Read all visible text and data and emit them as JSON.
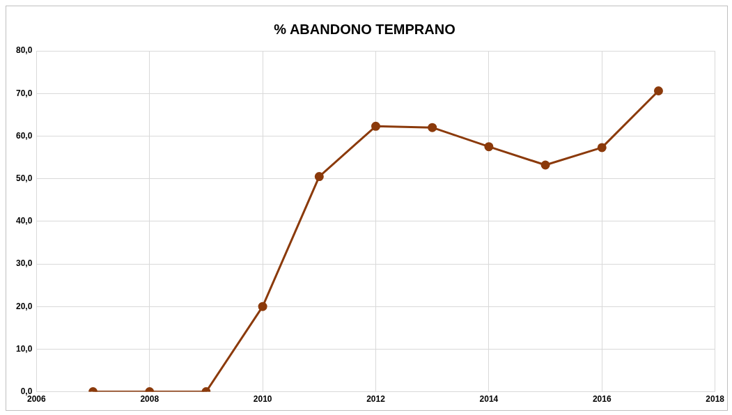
{
  "chart_data": {
    "type": "line",
    "title": "% ABANDONO TEMPRANO",
    "x": [
      2007,
      2008,
      2009,
      2010,
      2011,
      2012,
      2013,
      2014,
      2015,
      2016,
      2017
    ],
    "series": [
      {
        "color": "#8b3a0b",
        "values": [
          0,
          0,
          0,
          20.0,
          50.5,
          62.3,
          62.0,
          57.5,
          53.2,
          57.3,
          70.6
        ]
      }
    ],
    "xlim": [
      2006,
      2018
    ],
    "xticks": [
      2006,
      2008,
      2010,
      2012,
      2014,
      2016,
      2018
    ],
    "ylim": [
      0,
      80
    ],
    "yticks": [
      {
        "value": 0,
        "label": "0,0"
      },
      {
        "value": 10,
        "label": "10,0"
      },
      {
        "value": 20,
        "label": "20,0"
      },
      {
        "value": 30,
        "label": "30,0"
      },
      {
        "value": 40,
        "label": "40,0"
      },
      {
        "value": 50,
        "label": "50,0"
      },
      {
        "value": 60,
        "label": "60,0"
      },
      {
        "value": 70,
        "label": "70,0"
      },
      {
        "value": 80,
        "label": "80,0"
      }
    ],
    "grid": true,
    "legend": false,
    "marker": "circle",
    "line_style": "solid"
  }
}
